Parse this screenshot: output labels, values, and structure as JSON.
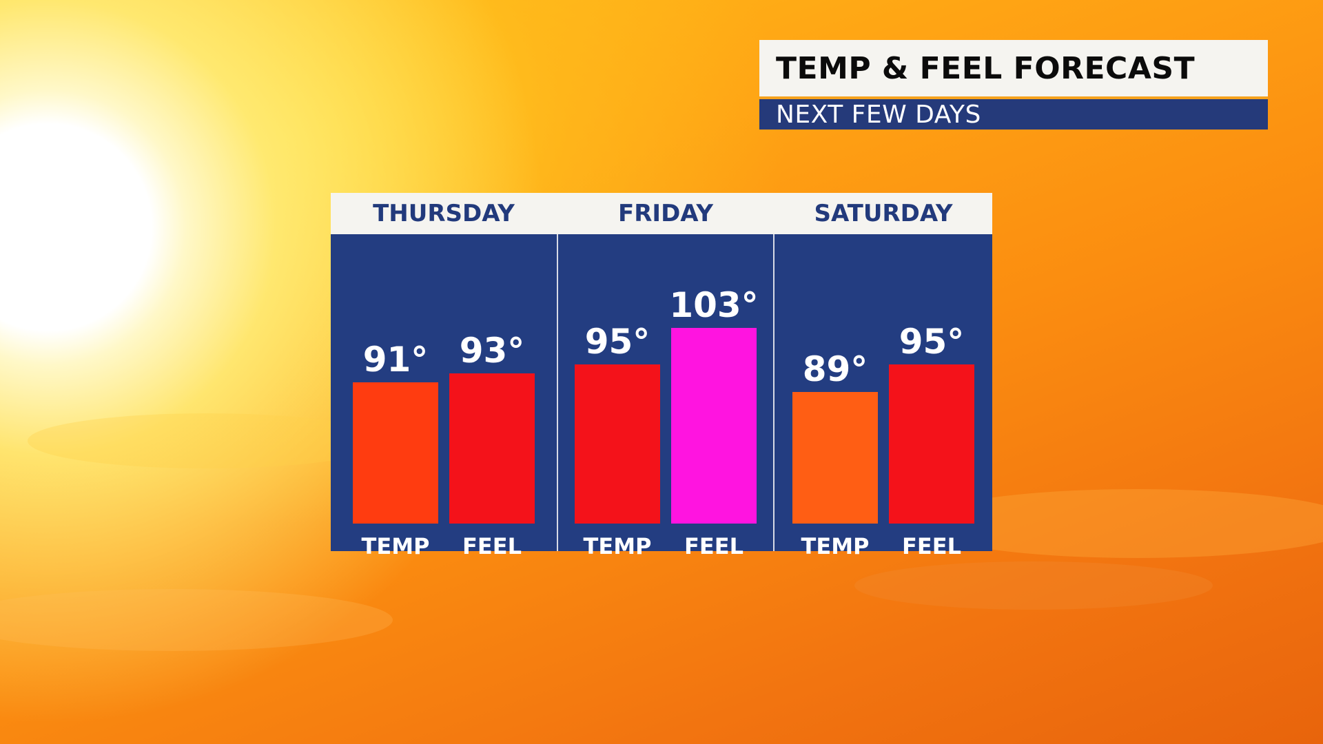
{
  "title": {
    "main": "TEMP & FEEL FORECAST",
    "sub": "NEXT FEW DAYS"
  },
  "colors": {
    "panel": "#233d81",
    "header_bg": "#f5f4f0",
    "header_text": "#223a7c"
  },
  "chart_data": {
    "type": "bar",
    "unit": "°",
    "ylim": [
      60,
      110
    ],
    "groups": [
      {
        "day": "THURSDAY",
        "bars": [
          {
            "label": "TEMP",
            "value": 91,
            "display": "91°",
            "color": "#ff3c10"
          },
          {
            "label": "FEEL",
            "value": 93,
            "display": "93°",
            "color": "#f4121a"
          }
        ]
      },
      {
        "day": "FRIDAY",
        "bars": [
          {
            "label": "TEMP",
            "value": 95,
            "display": "95°",
            "color": "#f4121a"
          },
          {
            "label": "FEEL",
            "value": 103,
            "display": "103°",
            "color": "#ff14e0"
          }
        ]
      },
      {
        "day": "SATURDAY",
        "bars": [
          {
            "label": "TEMP",
            "value": 89,
            "display": "89°",
            "color": "#ff5e14"
          },
          {
            "label": "FEEL",
            "value": 95,
            "display": "95°",
            "color": "#f4121a"
          }
        ]
      }
    ]
  }
}
